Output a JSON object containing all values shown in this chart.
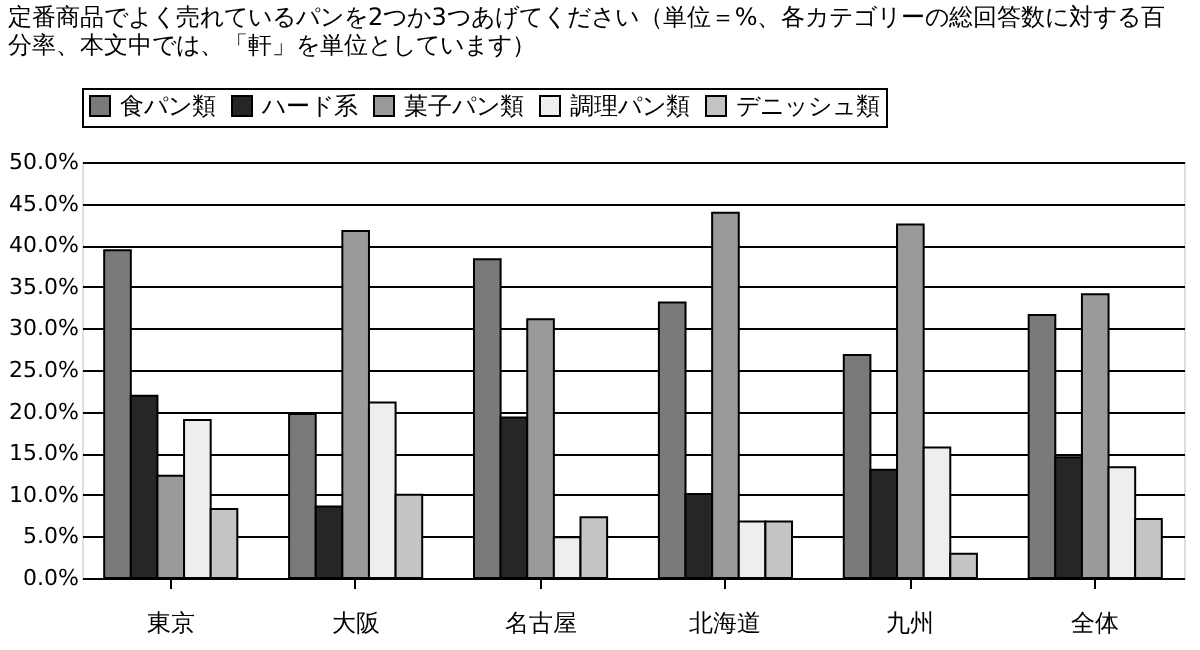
{
  "chart_data": {
    "type": "bar",
    "title": "定番商品でよく売れているパンを2つか3つあげてください（単位＝%、各カテゴリーの総回答数に対する百分率、本文中では、「軒」を単位としています）",
    "categories": [
      "東京",
      "大阪",
      "名古屋",
      "北海道",
      "九州",
      "全体"
    ],
    "series": [
      {
        "name": "食パン類",
        "color": "#7a7a7a",
        "values": [
          39.4,
          19.7,
          38.3,
          33.1,
          26.8,
          31.6
        ]
      },
      {
        "name": "ハード系",
        "color": "#262626",
        "values": [
          21.9,
          8.6,
          19.3,
          10.1,
          13.0,
          14.5
        ]
      },
      {
        "name": "菓子パン類",
        "color": "#9a9a9a",
        "values": [
          12.3,
          41.7,
          31.1,
          43.9,
          42.5,
          34.1
        ]
      },
      {
        "name": "調理パン類",
        "color": "#eeeeee",
        "values": [
          19.0,
          21.1,
          4.9,
          6.8,
          15.7,
          13.3
        ]
      },
      {
        "name": "デニッシュ類",
        "color": "#c4c4c4",
        "values": [
          8.3,
          10.0,
          7.3,
          6.8,
          2.9,
          7.1
        ]
      }
    ],
    "ylim": [
      0,
      50
    ],
    "yticks": [
      {
        "value": 0,
        "label": "0.0%"
      },
      {
        "value": 5,
        "label": "5.0%"
      },
      {
        "value": 10,
        "label": "10.0%"
      },
      {
        "value": 15,
        "label": "15.0%"
      },
      {
        "value": 20,
        "label": "20.0%"
      },
      {
        "value": 25,
        "label": "25.0%"
      },
      {
        "value": 30,
        "label": "30.0%"
      },
      {
        "value": 35,
        "label": "35.0%"
      },
      {
        "value": 40,
        "label": "40.0%"
      },
      {
        "value": 45,
        "label": "45.0%"
      },
      {
        "value": 50,
        "label": "50.0%"
      }
    ],
    "grid": "y",
    "legend": "top"
  }
}
